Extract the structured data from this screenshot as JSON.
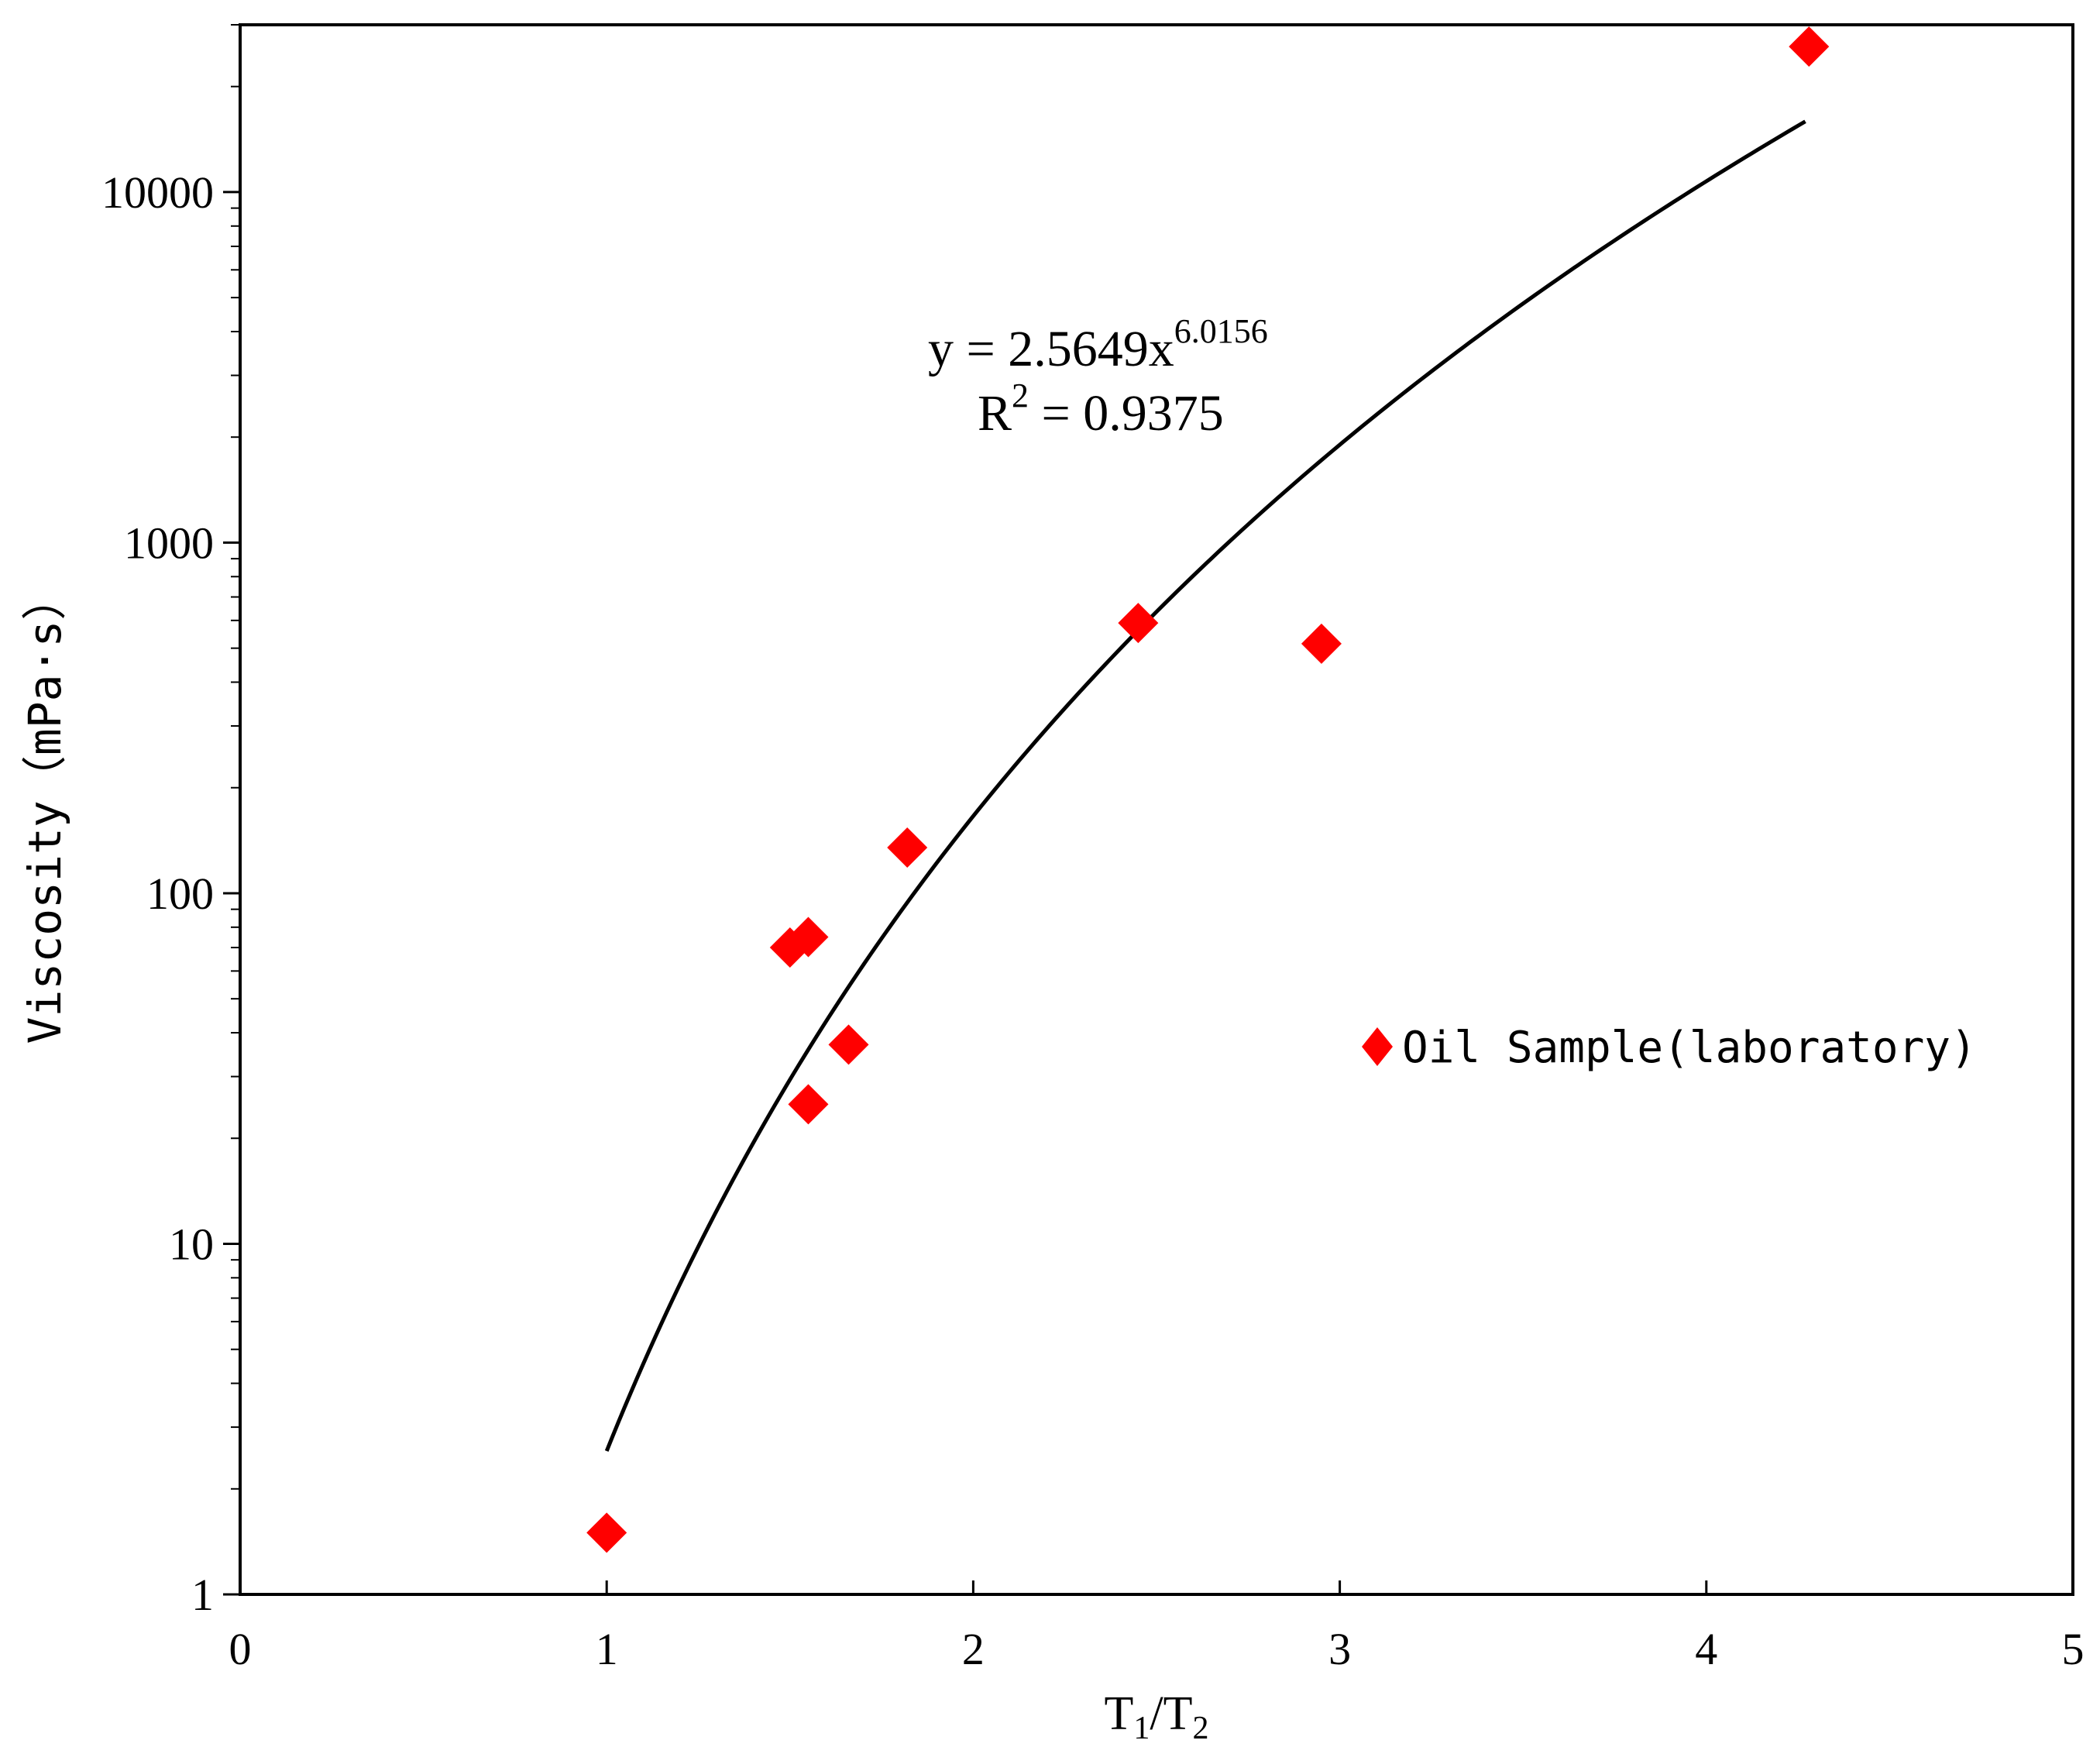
{
  "chart_data": {
    "type": "scatter",
    "xlabel": {
      "base": "T",
      "sub1": "1",
      "sep": "/",
      "base2": "T",
      "sub2": "2"
    },
    "ylabel": "Viscosity（mPa·s）",
    "xlim": [
      0,
      5
    ],
    "ylim": [
      1,
      30000
    ],
    "y_scale": "log",
    "x_ticks": [
      "0",
      "1",
      "2",
      "3",
      "4",
      "5"
    ],
    "y_ticks": [
      "1",
      "10",
      "100",
      "1000",
      "10000"
    ],
    "grid": false,
    "legend_position": "right-middle",
    "series": [
      {
        "name": "Oil Sample(laboratory)",
        "marker": "diamond",
        "color": "#ff0000",
        "points": [
          {
            "x": 1.0,
            "y": 1.5
          },
          {
            "x": 1.5,
            "y": 70
          },
          {
            "x": 1.55,
            "y": 75
          },
          {
            "x": 1.55,
            "y": 25
          },
          {
            "x": 1.66,
            "y": 37
          },
          {
            "x": 1.82,
            "y": 135
          },
          {
            "x": 2.45,
            "y": 590
          },
          {
            "x": 2.95,
            "y": 515
          },
          {
            "x": 4.28,
            "y": 26000
          }
        ]
      }
    ],
    "fit": {
      "type": "power",
      "coefficient": 2.5649,
      "exponent": 6.0156,
      "x_range": [
        1.0,
        4.27
      ],
      "color": "#000000",
      "equation": {
        "prefix": "y = 2.5649x",
        "superscript": "6.0156"
      },
      "r_squared": {
        "prefix": "R",
        "superscript": "2",
        "suffix": " = 0.9375"
      }
    }
  }
}
